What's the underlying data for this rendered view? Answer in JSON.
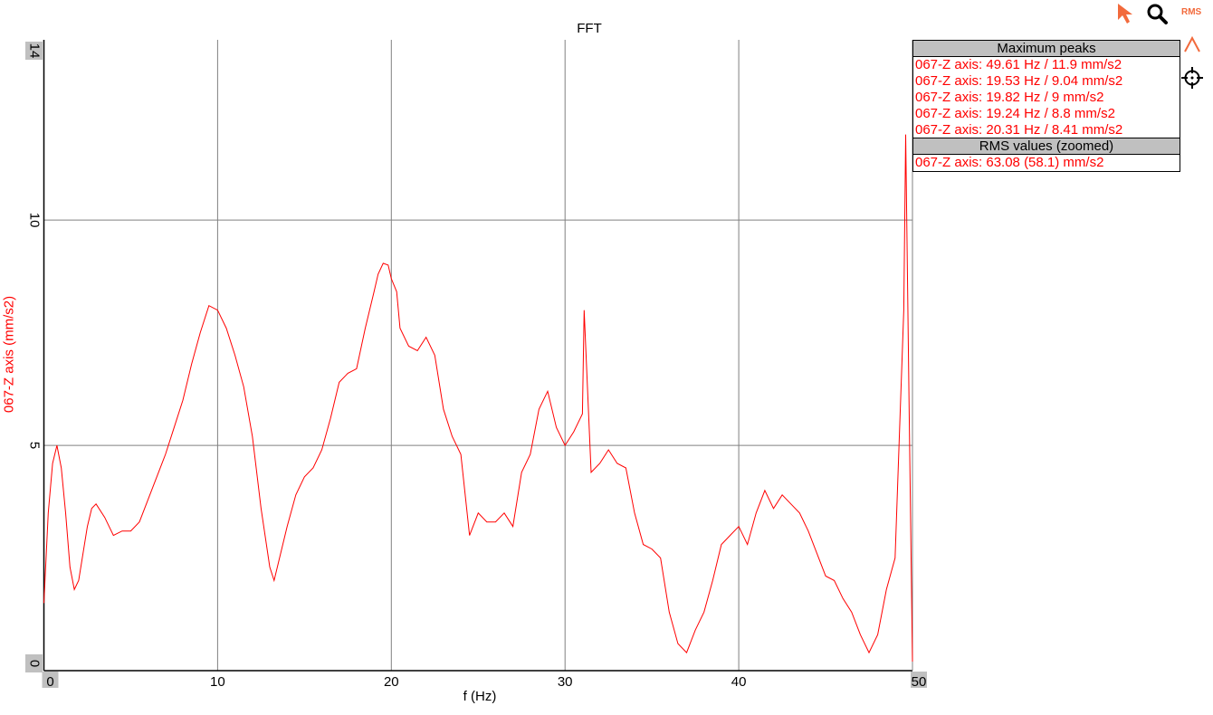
{
  "toolbar": {
    "pointer_icon": "cursor-arrow-icon",
    "zoom_icon": "magnifier-icon",
    "rms_label": "RMS",
    "peaks_icon": "caret-up-icon",
    "crosshair_icon": "crosshair-icon",
    "accent_color": "#f26a3c"
  },
  "max_peaks": {
    "header": "Maximum peaks",
    "rows": [
      "067-Z axis: 49.61 Hz / 11.9 mm/s2",
      "067-Z axis: 19.53 Hz / 9.04 mm/s2",
      "067-Z axis: 19.82 Hz / 9 mm/s2",
      "067-Z axis: 19.24 Hz / 8.8 mm/s2",
      "067-Z axis: 20.31 Hz / 8.41 mm/s2"
    ]
  },
  "rms": {
    "header": "RMS values (zoomed)",
    "rows": [
      "067-Z axis: 63.08 (58.1) mm/s2"
    ]
  },
  "chart_data": {
    "type": "line",
    "title": "FFT",
    "xlabel": "f (Hz)",
    "ylabel": "067-Z axis (mm/s2)",
    "xlim": [
      0,
      50
    ],
    "ylim": [
      0,
      14
    ],
    "xticks": [
      "0",
      "10",
      "20",
      "30",
      "40",
      "50"
    ],
    "yticks": [
      "0",
      "5",
      "10",
      "14"
    ],
    "grid": true,
    "series": [
      {
        "color": "#ff0000",
        "x": [
          0,
          0.25,
          0.5,
          0.75,
          1,
          1.25,
          1.5,
          1.75,
          2,
          2.5,
          2.75,
          3,
          3.5,
          4,
          4.5,
          5,
          5.5,
          6,
          6.5,
          7,
          7.5,
          8,
          8.5,
          9,
          9.5,
          10,
          10.5,
          11,
          11.5,
          12,
          12.5,
          13,
          13.25,
          13.5,
          14,
          14.5,
          15,
          15.5,
          16,
          16.5,
          17,
          17.5,
          18,
          18.5,
          19,
          19.24,
          19.53,
          19.82,
          20,
          20.31,
          20.5,
          21,
          21.5,
          22,
          22.5,
          23,
          23.5,
          24,
          24.5,
          25,
          25.5,
          26,
          26.5,
          27,
          27.5,
          28,
          28.5,
          29,
          29.5,
          30,
          30.5,
          31,
          31.1,
          31.5,
          32,
          32.5,
          33,
          33.5,
          34,
          34.5,
          35,
          35.5,
          36,
          36.5,
          37,
          37.5,
          38,
          38.5,
          39,
          39.5,
          40,
          40.5,
          41,
          41.5,
          42,
          42.5,
          43,
          43.5,
          44,
          44.5,
          45,
          45.5,
          46,
          46.5,
          47,
          47.5,
          48,
          48.5,
          49,
          49.5,
          49.61,
          49.8,
          50
        ],
        "y": [
          1.5,
          3.5,
          4.6,
          5.0,
          4.5,
          3.5,
          2.3,
          1.8,
          2.0,
          3.2,
          3.6,
          3.7,
          3.4,
          3.0,
          3.1,
          3.1,
          3.3,
          3.8,
          4.3,
          4.8,
          5.4,
          6.0,
          6.8,
          7.5,
          8.1,
          8.0,
          7.6,
          7.0,
          6.3,
          5.2,
          3.6,
          2.3,
          2.0,
          2.4,
          3.2,
          3.9,
          4.3,
          4.5,
          4.9,
          5.6,
          6.4,
          6.6,
          6.7,
          7.6,
          8.4,
          8.8,
          9.04,
          9.0,
          8.7,
          8.41,
          7.6,
          7.2,
          7.1,
          7.4,
          7.0,
          5.8,
          5.2,
          4.8,
          3.0,
          3.5,
          3.3,
          3.3,
          3.5,
          3.2,
          4.4,
          4.8,
          5.8,
          6.2,
          5.4,
          5.0,
          5.3,
          5.7,
          8.0,
          4.4,
          4.6,
          4.9,
          4.6,
          4.5,
          3.5,
          2.8,
          2.7,
          2.5,
          1.3,
          0.6,
          0.4,
          0.9,
          1.3,
          2.0,
          2.8,
          3.0,
          3.2,
          2.8,
          3.5,
          4.0,
          3.6,
          3.9,
          3.7,
          3.5,
          3.1,
          2.6,
          2.1,
          2.0,
          1.6,
          1.3,
          0.8,
          0.4,
          0.8,
          1.8,
          2.5,
          8.0,
          11.9,
          6.0,
          0.2
        ]
      }
    ]
  }
}
